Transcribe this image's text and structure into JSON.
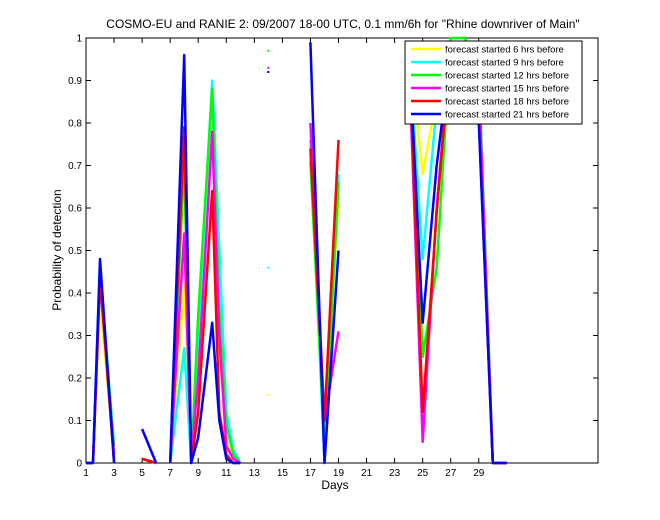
{
  "chart_data": {
    "type": "line",
    "title": "COSMO-EU and RANIE 2: 09/2007 18-00 UTC, 0.1 mm/6h for \"Rhine downriver of Main\"",
    "xlabel": "Days",
    "ylabel": "Probability of detection",
    "xlim": [
      1,
      37.5
    ],
    "ylim": [
      0,
      1
    ],
    "x_ticks": [
      1,
      3,
      5,
      7,
      9,
      11,
      13,
      15,
      17,
      19,
      21,
      23,
      25,
      27,
      29
    ],
    "y_ticks": [
      "0",
      "0.1",
      "0.2",
      "0.3",
      "0.4",
      "0.5",
      "0.6",
      "0.7",
      "0.8",
      "0.9",
      "1"
    ],
    "grid": false,
    "legend_position": "top-right",
    "series": [
      {
        "name": "forecast started 6 hrs before",
        "color": "#ffff00",
        "points": [
          [
            1,
            0
          ],
          [
            1.5,
            0
          ],
          [
            2,
            0.38
          ],
          [
            3,
            0.02
          ],
          [
            null,
            null
          ],
          [
            5,
            0.01
          ],
          [
            6,
            0
          ],
          [
            null,
            null
          ],
          [
            7,
            0
          ],
          [
            8,
            0.42
          ],
          [
            8.5,
            0.02
          ],
          [
            9,
            0.12
          ],
          [
            10,
            0.64
          ],
          [
            10.5,
            0.28
          ],
          [
            11,
            0.05
          ],
          [
            11.5,
            0.01
          ],
          [
            12,
            0
          ],
          [
            null,
            null
          ],
          [
            14,
            0.16
          ],
          [
            null,
            null
          ],
          [
            17,
            0.72
          ],
          [
            18,
            0.05
          ],
          [
            19,
            0.63
          ],
          [
            null,
            null
          ],
          [
            24,
            0.99
          ],
          [
            25,
            0.68
          ],
          [
            26,
            0.86
          ],
          [
            27,
            0.96
          ],
          [
            28,
            0.97
          ],
          [
            29,
            0.9
          ],
          [
            30,
            0
          ],
          [
            31,
            0
          ]
        ]
      },
      {
        "name": "forecast started 9 hrs before",
        "color": "#00ffff",
        "points": [
          [
            1,
            0
          ],
          [
            1.5,
            0
          ],
          [
            2,
            0.47
          ],
          [
            3,
            0
          ],
          [
            null,
            null
          ],
          [
            5,
            0.01
          ],
          [
            6,
            0
          ],
          [
            null,
            null
          ],
          [
            7,
            0
          ],
          [
            8,
            0.27
          ],
          [
            8.5,
            0
          ],
          [
            9,
            0.3
          ],
          [
            10,
            0.9
          ],
          [
            10.5,
            0.5
          ],
          [
            11,
            0.12
          ],
          [
            11.5,
            0.03
          ],
          [
            12,
            0
          ],
          [
            null,
            null
          ],
          [
            14,
            0.46
          ],
          [
            null,
            null
          ],
          [
            17,
            0.76
          ],
          [
            18,
            0
          ],
          [
            19,
            0.68
          ],
          [
            null,
            null
          ],
          [
            24,
            0.98
          ],
          [
            25,
            0.48
          ],
          [
            26,
            0.84
          ],
          [
            27,
            0.96
          ],
          [
            28,
            0.94
          ],
          [
            29,
            0.86
          ],
          [
            30,
            0
          ],
          [
            31,
            0
          ]
        ]
      },
      {
        "name": "forecast started 12 hrs before",
        "color": "#00ff00",
        "points": [
          [
            1,
            0
          ],
          [
            1.5,
            0
          ],
          [
            2,
            0.45
          ],
          [
            3,
            0.04
          ],
          [
            null,
            null
          ],
          [
            5,
            0.01
          ],
          [
            6,
            0
          ],
          [
            null,
            null
          ],
          [
            7,
            0
          ],
          [
            8,
            0.71
          ],
          [
            8.5,
            0
          ],
          [
            9,
            0.35
          ],
          [
            10,
            0.88
          ],
          [
            10.5,
            0.36
          ],
          [
            11,
            0.09
          ],
          [
            11.5,
            0.02
          ],
          [
            12,
            0
          ],
          [
            null,
            null
          ],
          [
            14,
            0.97
          ],
          [
            null,
            null
          ],
          [
            17,
            0.71
          ],
          [
            18,
            0.04
          ],
          [
            19,
            0.66
          ],
          [
            null,
            null
          ],
          [
            24,
            0.99
          ],
          [
            25,
            0.25
          ],
          [
            26,
            0.46
          ],
          [
            27,
            1.0
          ],
          [
            28,
            1.0
          ],
          [
            29,
            0.93
          ],
          [
            30,
            0
          ],
          [
            31,
            0
          ]
        ]
      },
      {
        "name": "forecast started 15 hrs before",
        "color": "#ff00ff",
        "points": [
          [
            1,
            0
          ],
          [
            1.5,
            0
          ],
          [
            2,
            0.43
          ],
          [
            3,
            0.02
          ],
          [
            null,
            null
          ],
          [
            5,
            0.01
          ],
          [
            6,
            0
          ],
          [
            null,
            null
          ],
          [
            7,
            0
          ],
          [
            8,
            0.54
          ],
          [
            8.5,
            0.01
          ],
          [
            9,
            0.2
          ],
          [
            10,
            0.78
          ],
          [
            10.5,
            0.3
          ],
          [
            11,
            0.04
          ],
          [
            11.5,
            0.01
          ],
          [
            12,
            0
          ],
          [
            null,
            null
          ],
          [
            14,
            0.93
          ],
          [
            null,
            null
          ],
          [
            17,
            0.8
          ],
          [
            18,
            0.1
          ],
          [
            19,
            0.31
          ],
          [
            null,
            null
          ],
          [
            24,
            0.97
          ],
          [
            25,
            0.05
          ],
          [
            26,
            0.6
          ],
          [
            27,
            0.99
          ],
          [
            28,
            0.98
          ],
          [
            29,
            0.9
          ],
          [
            30,
            0
          ],
          [
            31,
            0
          ]
        ]
      },
      {
        "name": "forecast started 18 hrs before",
        "color": "#ff0000",
        "points": [
          [
            1,
            0
          ],
          [
            1.5,
            0
          ],
          [
            2,
            0.44
          ],
          [
            3,
            0
          ],
          [
            null,
            null
          ],
          [
            5,
            0.01
          ],
          [
            6,
            0
          ],
          [
            null,
            null
          ],
          [
            7,
            0
          ],
          [
            8,
            0.79
          ],
          [
            8.5,
            0
          ],
          [
            9,
            0.12
          ],
          [
            10,
            0.64
          ],
          [
            10.5,
            0.12
          ],
          [
            11,
            0.02
          ],
          [
            11.5,
            0
          ],
          [
            12,
            0
          ],
          [
            null,
            null
          ],
          [
            14,
            0.92
          ],
          [
            null,
            null
          ],
          [
            17,
            0.74
          ],
          [
            18,
            0.1
          ],
          [
            19,
            0.76
          ],
          [
            null,
            null
          ],
          [
            24,
            0.99
          ],
          [
            25,
            0.12
          ],
          [
            26,
            0.59
          ],
          [
            27,
            0.98
          ],
          [
            28,
            0.88
          ],
          [
            29,
            0.81
          ],
          [
            30,
            0
          ],
          [
            31,
            0
          ]
        ]
      },
      {
        "name": "forecast started 21 hrs before",
        "color": "#0000ff",
        "points": [
          [
            1,
            0
          ],
          [
            1.5,
            0
          ],
          [
            2,
            0.48
          ],
          [
            3,
            0
          ],
          [
            null,
            null
          ],
          [
            5,
            0.08
          ],
          [
            6,
            0
          ],
          [
            null,
            null
          ],
          [
            7,
            0
          ],
          [
            8,
            0.96
          ],
          [
            8.5,
            0
          ],
          [
            9,
            0.06
          ],
          [
            10,
            0.33
          ],
          [
            10.5,
            0.1
          ],
          [
            11,
            0.01
          ],
          [
            11.5,
            0
          ],
          [
            12,
            0
          ],
          [
            null,
            null
          ],
          [
            14,
            0.92
          ],
          [
            null,
            null
          ],
          [
            17,
            0.99
          ],
          [
            18,
            0
          ],
          [
            19,
            0.5
          ],
          [
            null,
            null
          ],
          [
            24,
            0.99
          ],
          [
            25,
            0.33
          ],
          [
            26,
            0.7
          ],
          [
            27,
            0.97
          ],
          [
            28,
            0.85
          ],
          [
            29,
            0.8
          ],
          [
            30,
            0
          ],
          [
            31,
            0
          ]
        ]
      }
    ]
  }
}
